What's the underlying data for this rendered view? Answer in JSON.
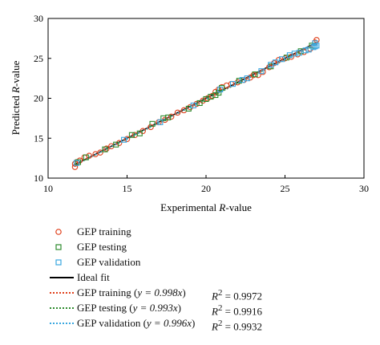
{
  "chart_data": {
    "type": "scatter",
    "xlabel": "Experimental R-value",
    "ylabel": "Predicted R-value",
    "xlim": [
      10,
      30
    ],
    "ylim": [
      10,
      30
    ],
    "x_ticks": [
      "10",
      "15",
      "20",
      "25",
      "30"
    ],
    "y_ticks": [
      "10",
      "15",
      "20",
      "25",
      "30"
    ],
    "grid": false,
    "legend_position": "below",
    "series": [
      {
        "name": "GEP training",
        "marker": "circle",
        "color": "#e0401b",
        "points": [
          [
            11.7,
            11.4
          ],
          [
            11.7,
            11.8
          ],
          [
            11.8,
            12.0
          ],
          [
            12.0,
            12.2
          ],
          [
            12.3,
            12.6
          ],
          [
            12.6,
            12.8
          ],
          [
            13.0,
            13.0
          ],
          [
            13.3,
            13.2
          ],
          [
            13.7,
            13.7
          ],
          [
            14.0,
            14.0
          ],
          [
            14.5,
            14.4
          ],
          [
            15.0,
            14.9
          ],
          [
            15.5,
            15.4
          ],
          [
            16.0,
            15.9
          ],
          [
            16.5,
            16.4
          ],
          [
            17.0,
            17.0
          ],
          [
            17.4,
            17.3
          ],
          [
            17.8,
            17.7
          ],
          [
            18.2,
            18.2
          ],
          [
            18.6,
            18.5
          ],
          [
            19.0,
            18.9
          ],
          [
            19.4,
            19.3
          ],
          [
            19.8,
            19.7
          ],
          [
            20.1,
            20.0
          ],
          [
            20.4,
            20.3
          ],
          [
            20.6,
            20.8
          ],
          [
            20.8,
            21.1
          ],
          [
            21.0,
            21.4
          ],
          [
            21.3,
            21.6
          ],
          [
            21.6,
            21.8
          ],
          [
            22.0,
            22.0
          ],
          [
            22.4,
            22.3
          ],
          [
            22.8,
            22.6
          ],
          [
            23.0,
            22.9
          ],
          [
            23.3,
            22.9
          ],
          [
            23.6,
            23.3
          ],
          [
            24.0,
            23.9
          ],
          [
            24.3,
            24.4
          ],
          [
            24.6,
            24.8
          ],
          [
            25.0,
            25.0
          ],
          [
            25.4,
            25.2
          ],
          [
            25.8,
            25.5
          ],
          [
            26.2,
            25.8
          ],
          [
            26.6,
            26.2
          ],
          [
            26.9,
            27.0
          ],
          [
            27.0,
            27.3
          ]
        ]
      },
      {
        "name": "GEP testing",
        "marker": "square",
        "color": "#2e8b2e",
        "points": [
          [
            11.9,
            12.0
          ],
          [
            12.4,
            12.6
          ],
          [
            13.6,
            13.6
          ],
          [
            14.3,
            14.2
          ],
          [
            15.3,
            15.4
          ],
          [
            15.8,
            15.6
          ],
          [
            16.6,
            16.8
          ],
          [
            17.3,
            17.5
          ],
          [
            17.6,
            17.6
          ],
          [
            18.9,
            18.7
          ],
          [
            19.6,
            19.4
          ],
          [
            20.0,
            19.9
          ],
          [
            20.3,
            20.2
          ],
          [
            20.6,
            20.4
          ],
          [
            20.8,
            20.7
          ],
          [
            21.0,
            21.3
          ],
          [
            22.1,
            22.2
          ],
          [
            23.1,
            23.0
          ],
          [
            24.1,
            24.0
          ],
          [
            25.1,
            25.1
          ],
          [
            26.0,
            25.9
          ],
          [
            26.7,
            26.6
          ]
        ]
      },
      {
        "name": "GEP validation",
        "marker": "square",
        "color": "#3aa7e0",
        "points": [
          [
            11.8,
            11.9
          ],
          [
            14.8,
            14.8
          ],
          [
            17.1,
            17.0
          ],
          [
            19.2,
            19.1
          ],
          [
            20.9,
            21.1
          ],
          [
            21.7,
            21.8
          ],
          [
            22.3,
            22.3
          ],
          [
            22.6,
            22.5
          ],
          [
            23.5,
            23.4
          ],
          [
            24.1,
            24.2
          ],
          [
            24.4,
            24.5
          ],
          [
            24.8,
            24.9
          ],
          [
            25.3,
            25.4
          ],
          [
            25.6,
            25.6
          ],
          [
            25.9,
            25.7
          ],
          [
            26.3,
            26.0
          ],
          [
            26.5,
            26.1
          ],
          [
            26.8,
            26.4
          ],
          [
            26.9,
            26.5
          ],
          [
            27.0,
            26.6
          ],
          [
            26.9,
            26.9
          ]
        ]
      }
    ],
    "lines": [
      {
        "name": "Ideal fit",
        "style": "solid",
        "color": "#000000",
        "slope": 1.0
      },
      {
        "name": "GEP training",
        "equation": "y = 0.998x",
        "style": "dotted",
        "color": "#e0401b",
        "slope": 0.998,
        "r2": "R2 = 0.9972"
      },
      {
        "name": "GEP testing",
        "equation": "y = 0.993x",
        "style": "dotted",
        "color": "#2e8b2e",
        "slope": 0.993,
        "r2": "R2 = 0.9916"
      },
      {
        "name": "GEP validation",
        "equation": "y = 0.996x",
        "style": "dotted",
        "color": "#3aa7e0",
        "slope": 0.996,
        "r2": "R2 = 0.9932"
      }
    ]
  },
  "legend": {
    "training_label": "GEP training",
    "testing_label": "GEP testing",
    "validation_label": "GEP validation",
    "ideal_label": "Ideal fit",
    "fit_training_label": "GEP training (",
    "fit_training_eq": "y = 0.998x",
    "fit_testing_label": "GEP testing (",
    "fit_testing_eq": "y = 0.993x",
    "fit_validation_label": "GEP validation (",
    "fit_validation_eq": "y = 0.996x",
    "close_paren": ")",
    "r2_symbol": "R",
    "r2_exp": "2",
    "r2_training": " = 0.9972",
    "r2_testing": " = 0.9916",
    "r2_validation": " = 0.9932"
  },
  "axis_text": {
    "x_prefix": "Experimental ",
    "x_var": "R",
    "x_suffix": "-value",
    "y_prefix": "Predicted ",
    "y_var": "R",
    "y_suffix": "-value"
  }
}
